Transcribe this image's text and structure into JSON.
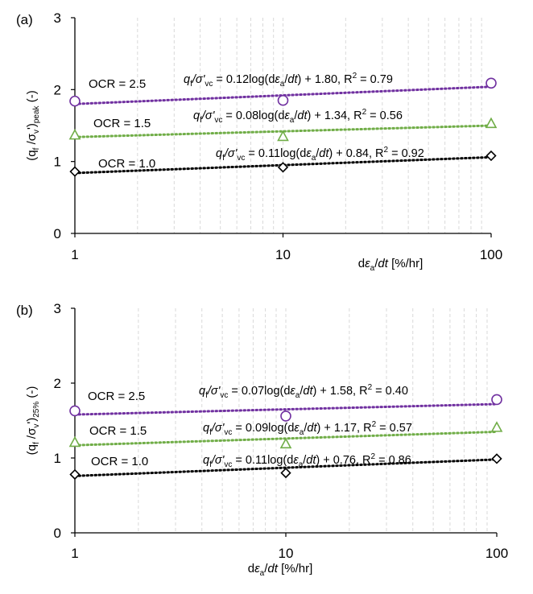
{
  "chart_data": [
    {
      "panel_label": "(a)",
      "type": "scatter",
      "x_scale": "log",
      "xlim": [
        1,
        100
      ],
      "ylim": [
        0,
        3
      ],
      "xticks": [
        "1",
        "10",
        "100"
      ],
      "yticks": [
        "0",
        "1",
        "2",
        "3"
      ],
      "ylabel": {
        "main": "(q",
        "s1": "f",
        "mid": " /σ",
        "s2": "v",
        "end": "')",
        "s3": "peak",
        "tail": " (-)"
      },
      "xlabel": {
        "pre": "d",
        "eps": "ε",
        "s1": "a",
        "post": "/",
        "dt": "dt",
        "units": "  [%/hr]"
      },
      "grid": true,
      "series": [
        {
          "name": "OCR = 2.5",
          "marker": "circle",
          "color": "#7030A0",
          "x": [
            1,
            10,
            100
          ],
          "y": [
            1.84,
            1.85,
            2.09
          ],
          "fit": {
            "slope": 0.12,
            "intercept": 1.8
          },
          "equation": {
            "pre": "q",
            "s1": "f",
            "mid": "/σ'",
            "s2": "vc",
            "rest": " = 0.12log(dε",
            "s3": "a",
            "rest2": "/dt) + 1.80, R",
            "sup": "2",
            "tail": " = 0.79"
          }
        },
        {
          "name": "OCR = 1.5",
          "marker": "triangle",
          "color": "#70AD47",
          "x": [
            1,
            10,
            100
          ],
          "y": [
            1.37,
            1.35,
            1.53
          ],
          "fit": {
            "slope": 0.08,
            "intercept": 1.34
          },
          "equation": {
            "pre": "q",
            "s1": "f",
            "mid": "/σ'",
            "s2": "vc",
            "rest": " = 0.08log(dε",
            "s3": "a",
            "rest2": "/dt) + 1.34, R",
            "sup": "2",
            "tail": " = 0.56"
          }
        },
        {
          "name": "OCR = 1.0",
          "marker": "diamond",
          "color": "#000000",
          "x": [
            1,
            10,
            100
          ],
          "y": [
            0.86,
            0.92,
            1.08
          ],
          "fit": {
            "slope": 0.11,
            "intercept": 0.84
          },
          "equation": {
            "pre": "q",
            "s1": "f",
            "mid": "/σ'",
            "s2": "vc",
            "rest": " = 0.11log(dε",
            "s3": "a",
            "rest2": "/dt) + 0.84, R",
            "sup": "2",
            "tail": " = 0.92"
          }
        }
      ]
    },
    {
      "panel_label": "(b)",
      "type": "scatter",
      "x_scale": "log",
      "xlim": [
        1,
        100
      ],
      "ylim": [
        0,
        3
      ],
      "xticks": [
        "1",
        "10",
        "100"
      ],
      "yticks": [
        "0",
        "1",
        "2",
        "3"
      ],
      "ylabel": {
        "main": "(q",
        "s1": "f",
        "mid": " /σ",
        "s2": "v",
        "end": "')",
        "s3": "25%",
        "tail": " (-)"
      },
      "xlabel": {
        "pre": "d",
        "eps": "ε",
        "s1": "a",
        "post": "/",
        "dt": "dt",
        "units": "  [%/hr]"
      },
      "grid": true,
      "series": [
        {
          "name": "OCR = 2.5",
          "marker": "circle",
          "color": "#7030A0",
          "x": [
            1,
            10,
            100
          ],
          "y": [
            1.63,
            1.56,
            1.78
          ],
          "fit": {
            "slope": 0.07,
            "intercept": 1.58
          },
          "equation": {
            "pre": "q",
            "s1": "f",
            "mid": "/σ'",
            "s2": "vc",
            "rest": " = 0.07log(dε",
            "s3": "a",
            "rest2": "/dt) + 1.58, R",
            "sup": "2",
            "tail": " = 0.40"
          }
        },
        {
          "name": "OCR = 1.5",
          "marker": "triangle",
          "color": "#70AD47",
          "x": [
            1,
            10,
            100
          ],
          "y": [
            1.21,
            1.19,
            1.41
          ],
          "fit": {
            "slope": 0.09,
            "intercept": 1.17
          },
          "equation": {
            "pre": "q",
            "s1": "f",
            "mid": "/σ'",
            "s2": "vc",
            "rest": " = 0.09log(dε",
            "s3": "a",
            "rest2": "/dt) + 1.17, R",
            "sup": "2",
            "tail": " = 0.57"
          }
        },
        {
          "name": "OCR = 1.0",
          "marker": "diamond",
          "color": "#000000",
          "x": [
            1,
            10,
            100
          ],
          "y": [
            0.78,
            0.8,
            0.99
          ],
          "fit": {
            "slope": 0.11,
            "intercept": 0.76
          },
          "equation": {
            "pre": "q",
            "s1": "f",
            "mid": "/σ'",
            "s2": "vc",
            "rest": " = 0.11log(dε",
            "s3": "a",
            "rest2": "/dt) + 0.76, R",
            "sup": "2",
            "tail": " = 0.86"
          }
        }
      ]
    }
  ]
}
